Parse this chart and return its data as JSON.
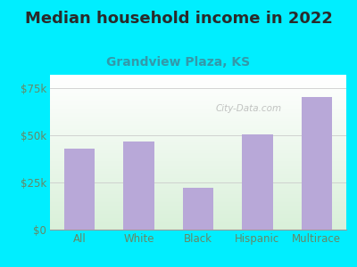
{
  "title": "Median household income in 2022",
  "subtitle": "Grandview Plaza, KS",
  "categories": [
    "All",
    "White",
    "Black",
    "Hispanic",
    "Multirace"
  ],
  "values": [
    43000,
    46500,
    22000,
    50500,
    70000
  ],
  "bar_color": "#b8a8d8",
  "background_color": "#00eeff",
  "title_color": "#2a2a2a",
  "subtitle_color": "#3399aa",
  "tick_color": "#668866",
  "ylim": [
    0,
    82000
  ],
  "yticks": [
    0,
    25000,
    50000,
    75000
  ],
  "ytick_labels": [
    "$0",
    "$25k",
    "$50k",
    "$75k"
  ],
  "title_fontsize": 13,
  "subtitle_fontsize": 10,
  "tick_fontsize": 8.5,
  "watermark": "City-Data.com"
}
